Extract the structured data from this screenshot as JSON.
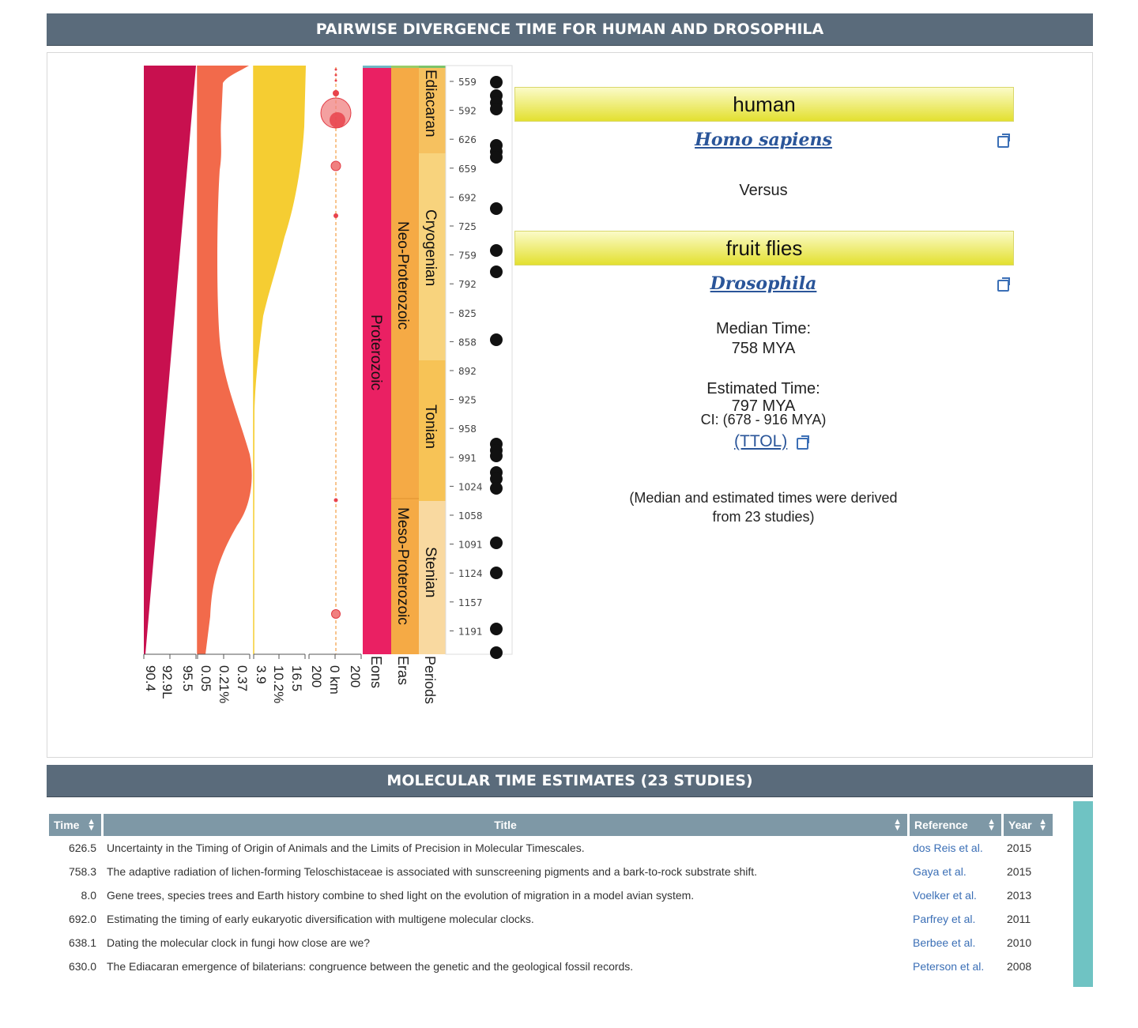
{
  "divergence_header": "PAIRWISE DIVERGENCE TIME FOR HUMAN AND DROSOPHILA",
  "taxon_a": {
    "common_name": "human",
    "scientific_name": "Homo sapiens",
    "link_icon": "external-link-icon"
  },
  "versus_label": "Versus",
  "taxon_b": {
    "common_name": "fruit flies",
    "scientific_name": "Drosophila",
    "link_icon": "external-link-icon"
  },
  "median": {
    "label": "Median Time:",
    "value": "758 MYA"
  },
  "estimated": {
    "label": "Estimated Time:",
    "value": "797 MYA",
    "ci": "CI: (678 - 916 MYA)",
    "source_link": "(TTOL)"
  },
  "derivation_note_line1": "(Median and estimated times were derived",
  "derivation_note_line2": "from 23 studies)",
  "timeline": {
    "time_ticks": [
      "559",
      "592",
      "626",
      "659",
      "692",
      "725",
      "759",
      "792",
      "825",
      "858",
      "892",
      "925",
      "958",
      "991",
      "1024",
      "1058",
      "1091",
      "1124",
      "1157",
      "1191"
    ],
    "periods": [
      "Ediacaran",
      "Cryogenian",
      "Tonian",
      "Stenian"
    ],
    "eras": [
      "Neo-Proterozoic",
      "Meso-Proterozoic"
    ],
    "eons": [
      "Proterozoic"
    ],
    "axis_labels": {
      "co2": [
        "90.4",
        "92.9L",
        "95.5"
      ],
      "o2": [
        "0.05",
        "0.21%",
        "0.37"
      ],
      "solar": [
        "3.9",
        "10.2%",
        "16.5"
      ],
      "impacts": [
        "200",
        "0 km",
        "200"
      ],
      "eons": "Eons",
      "eras": "Eras",
      "periods": "Periods"
    },
    "colors": {
      "co2": "#c8104f",
      "o2": "#f26a4b",
      "solar": "#f5cd32",
      "impact": "#e8434c",
      "eon": "#ea2063",
      "era": "#f5aa45",
      "period_ediacaran": "#f6c15f",
      "period_cryogenian": "#f8d37d",
      "period_tonian": "#f7c356",
      "period_stenian": "#f9d9a0"
    }
  },
  "studies_header": "MOLECULAR TIME ESTIMATES (23 STUDIES)",
  "table": {
    "columns": [
      "Time",
      "Title",
      "Reference",
      "Year"
    ],
    "sort_icon": "sort-arrows-icon",
    "rows": [
      {
        "time": "626.5",
        "title": "Uncertainty in the Timing of Origin of Animals and the Limits of Precision in Molecular Timescales.",
        "reference": "dos Reis et al.",
        "year": "2015"
      },
      {
        "time": "758.3",
        "title": "The adaptive radiation of lichen-forming Teloschistaceae is associated with sunscreening pigments and a bark-to-rock substrate shift.",
        "reference": "Gaya et al.",
        "year": "2015"
      },
      {
        "time": "8.0",
        "title": "Gene trees, species trees and Earth history combine to shed light on the evolution of migration in a model avian system.",
        "reference": "Voelker et al.",
        "year": "2013"
      },
      {
        "time": "692.0",
        "title": "Estimating the timing of early eukaryotic diversification with multigene molecular clocks.",
        "reference": "Parfrey et al.",
        "year": "2011"
      },
      {
        "time": "638.1",
        "title": "Dating the molecular clock in fungi how close are we?",
        "reference": "Berbee et al.",
        "year": "2010"
      },
      {
        "time": "630.0",
        "title": "The Ediacaran emergence of bilaterians: congruence between the genetic and the geological fossil records.",
        "reference": "Peterson et al.",
        "year": "2008"
      }
    ]
  }
}
